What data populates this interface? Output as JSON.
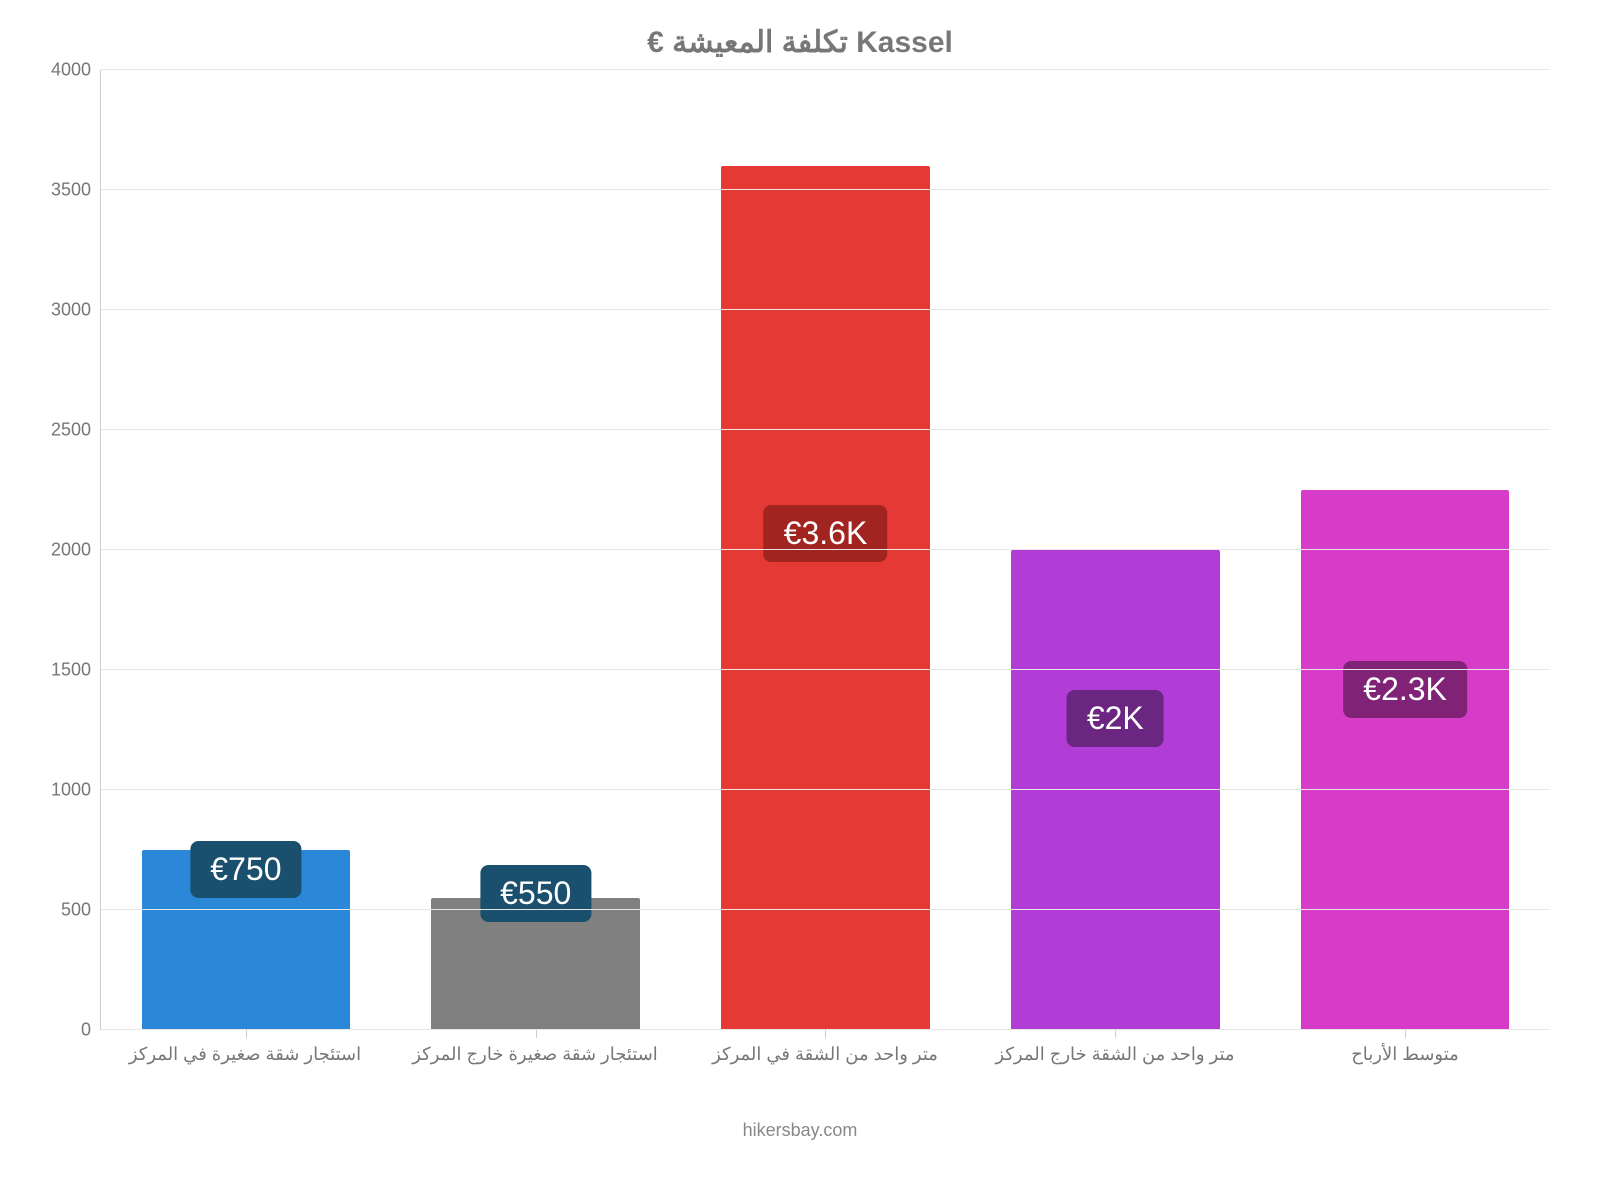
{
  "chart": {
    "type": "bar",
    "title": "€ تكلفة المعيشة Kassel",
    "title_fontsize": 30,
    "title_color": "#777777",
    "background_color": "#ffffff",
    "grid_color": "#e6e6e6",
    "axis_color": "#cccccc",
    "label_color": "#777777",
    "label_fontsize": 18,
    "bar_width": 0.72,
    "ylim": [
      0,
      4000
    ],
    "ytick_step": 500,
    "yticks": [
      {
        "value": 0,
        "label": "0"
      },
      {
        "value": 500,
        "label": "500"
      },
      {
        "value": 1000,
        "label": "1000"
      },
      {
        "value": 1500,
        "label": "1500"
      },
      {
        "value": 2000,
        "label": "2000"
      },
      {
        "value": 2500,
        "label": "2500"
      },
      {
        "value": 3000,
        "label": "3000"
      },
      {
        "value": 3500,
        "label": "3500"
      },
      {
        "value": 4000,
        "label": "4000"
      }
    ],
    "bars": [
      {
        "category": "استئجار شقة صغيرة في المركز",
        "value": 750,
        "display_label": "€750",
        "bar_color": "#2b87d8",
        "label_bg": "#1a4f6e",
        "label_offset_value": 550
      },
      {
        "category": "استئجار شقة صغيرة خارج المركز",
        "value": 550,
        "display_label": "€550",
        "bar_color": "#808080",
        "label_bg": "#1a4f6e",
        "label_offset_value": 450
      },
      {
        "category": "متر واحد من الشقة في المركز",
        "value": 3600,
        "display_label": "€3.6K",
        "bar_color": "#e53935",
        "label_bg": "#a12420",
        "label_offset_value": 1950
      },
      {
        "category": "متر واحد من الشقة خارج المركز",
        "value": 2000,
        "display_label": "€2K",
        "bar_color": "#b13cd6",
        "label_bg": "#6a2681",
        "label_offset_value": 1180
      },
      {
        "category": "متوسط الأرباح",
        "value": 2250,
        "display_label": "€2.3K",
        "bar_color": "#d63cc8",
        "label_bg": "#802377",
        "label_offset_value": 1300
      }
    ],
    "bar_label_fontsize": 32,
    "bar_label_color": "#ffffff"
  },
  "footer": {
    "credit": "hikersbay.com",
    "color": "#888888",
    "fontsize": 18
  }
}
